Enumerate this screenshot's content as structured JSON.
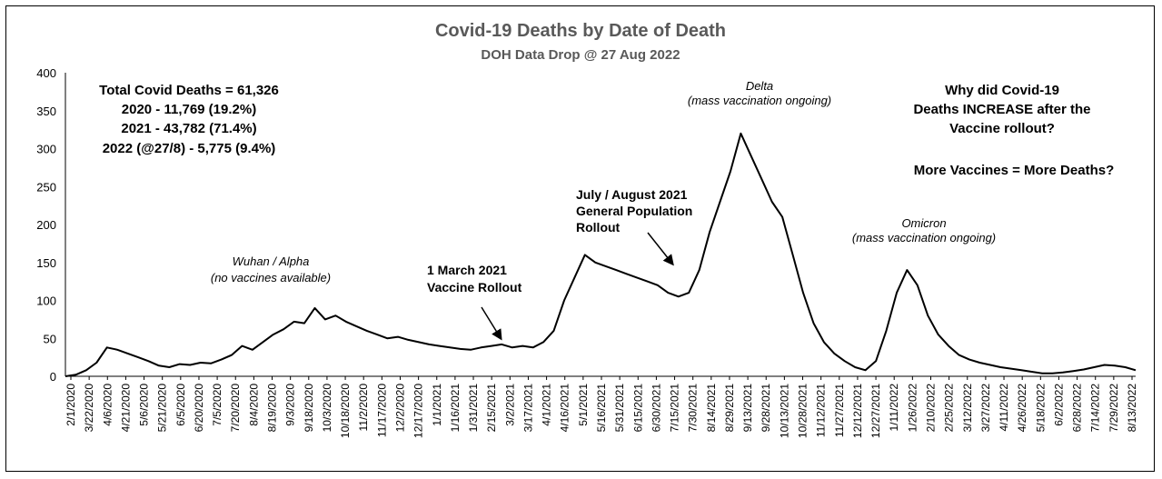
{
  "chart_data": {
    "type": "line",
    "title": "Covid-19 Deaths by Date of Death",
    "subtitle": "DOH Data Drop @ 27 Aug 2022",
    "xlabel": "",
    "ylabel": "",
    "ylim": [
      0,
      400
    ],
    "yticks": [
      "0",
      "50",
      "100",
      "150",
      "200",
      "250",
      "300",
      "350",
      "400"
    ],
    "xticks": [
      "2/1/2020",
      "3/22/2020",
      "4/6/2020",
      "4/21/2020",
      "5/6/2020",
      "5/21/2020",
      "6/5/2020",
      "6/20/2020",
      "7/5/2020",
      "7/20/2020",
      "8/4/2020",
      "8/19/2020",
      "9/3/2020",
      "9/18/2020",
      "10/3/2020",
      "10/18/2020",
      "11/2/2020",
      "11/17/2020",
      "12/2/2020",
      "12/17/2020",
      "1/1/2021",
      "1/16/2021",
      "1/31/2021",
      "2/15/2021",
      "3/2/2021",
      "3/17/2021",
      "4/1/2021",
      "4/16/2021",
      "5/1/2021",
      "5/16/2021",
      "5/31/2021",
      "6/15/2021",
      "6/30/2021",
      "7/15/2021",
      "7/30/2021",
      "8/14/2021",
      "8/29/2021",
      "9/13/2021",
      "9/28/2021",
      "10/13/2021",
      "10/28/2021",
      "11/12/2021",
      "11/27/2021",
      "12/12/2021",
      "12/27/2021",
      "1/11/2022",
      "1/26/2022",
      "2/10/2022",
      "2/25/2022",
      "3/12/2022",
      "3/27/2022",
      "4/11/2022",
      "4/26/2022",
      "5/18/2022",
      "6/2/2022",
      "6/28/2022",
      "7/14/2022",
      "7/29/2022",
      "8/13/2022"
    ],
    "grid": false,
    "series": [
      {
        "values": [
          0,
          2,
          8,
          18,
          38,
          35,
          30,
          25,
          20,
          14,
          12,
          16,
          15,
          18,
          17,
          22,
          28,
          40,
          35,
          45,
          55,
          62,
          72,
          70,
          90,
          75,
          80,
          72,
          66,
          60,
          55,
          50,
          52,
          48,
          45,
          42,
          40,
          38,
          36,
          35,
          38,
          40,
          42,
          38,
          40,
          38,
          45,
          60,
          100,
          130,
          160,
          150,
          145,
          140,
          135,
          130,
          125,
          120,
          110,
          105,
          110,
          140,
          190,
          230,
          270,
          320,
          290,
          260,
          230,
          210,
          160,
          110,
          70,
          45,
          30,
          20,
          12,
          8,
          20,
          60,
          110,
          140,
          120,
          80,
          55,
          40,
          28,
          22,
          18,
          15,
          12,
          10,
          8,
          6,
          4,
          4,
          5,
          7,
          9,
          12,
          15,
          14,
          12,
          8
        ]
      }
    ],
    "text_blocks": {
      "totals": [
        "Total Covid Deaths = 61,326",
        "2020 - 11,769 (19.2%)",
        "2021 - 43,782 (71.4%)",
        "2022 (@27/8) - 5,775 (9.4%)"
      ],
      "question": [
        "Why did Covid-19",
        "Deaths INCREASE after the",
        "Vaccine rollout?"
      ],
      "more_vaccines": "More Vaccines = More Deaths?"
    },
    "annotations": {
      "wuhan": [
        "Wuhan / Alpha",
        "(no vaccines available)"
      ],
      "march": [
        "1 March 2021",
        "Vaccine Rollout"
      ],
      "july": [
        "July / August 2021",
        "General Population",
        "Rollout"
      ],
      "delta": [
        "Delta",
        "(mass vaccination ongoing)"
      ],
      "omicron": [
        "Omicron",
        "(mass vaccination ongoing)"
      ]
    }
  }
}
